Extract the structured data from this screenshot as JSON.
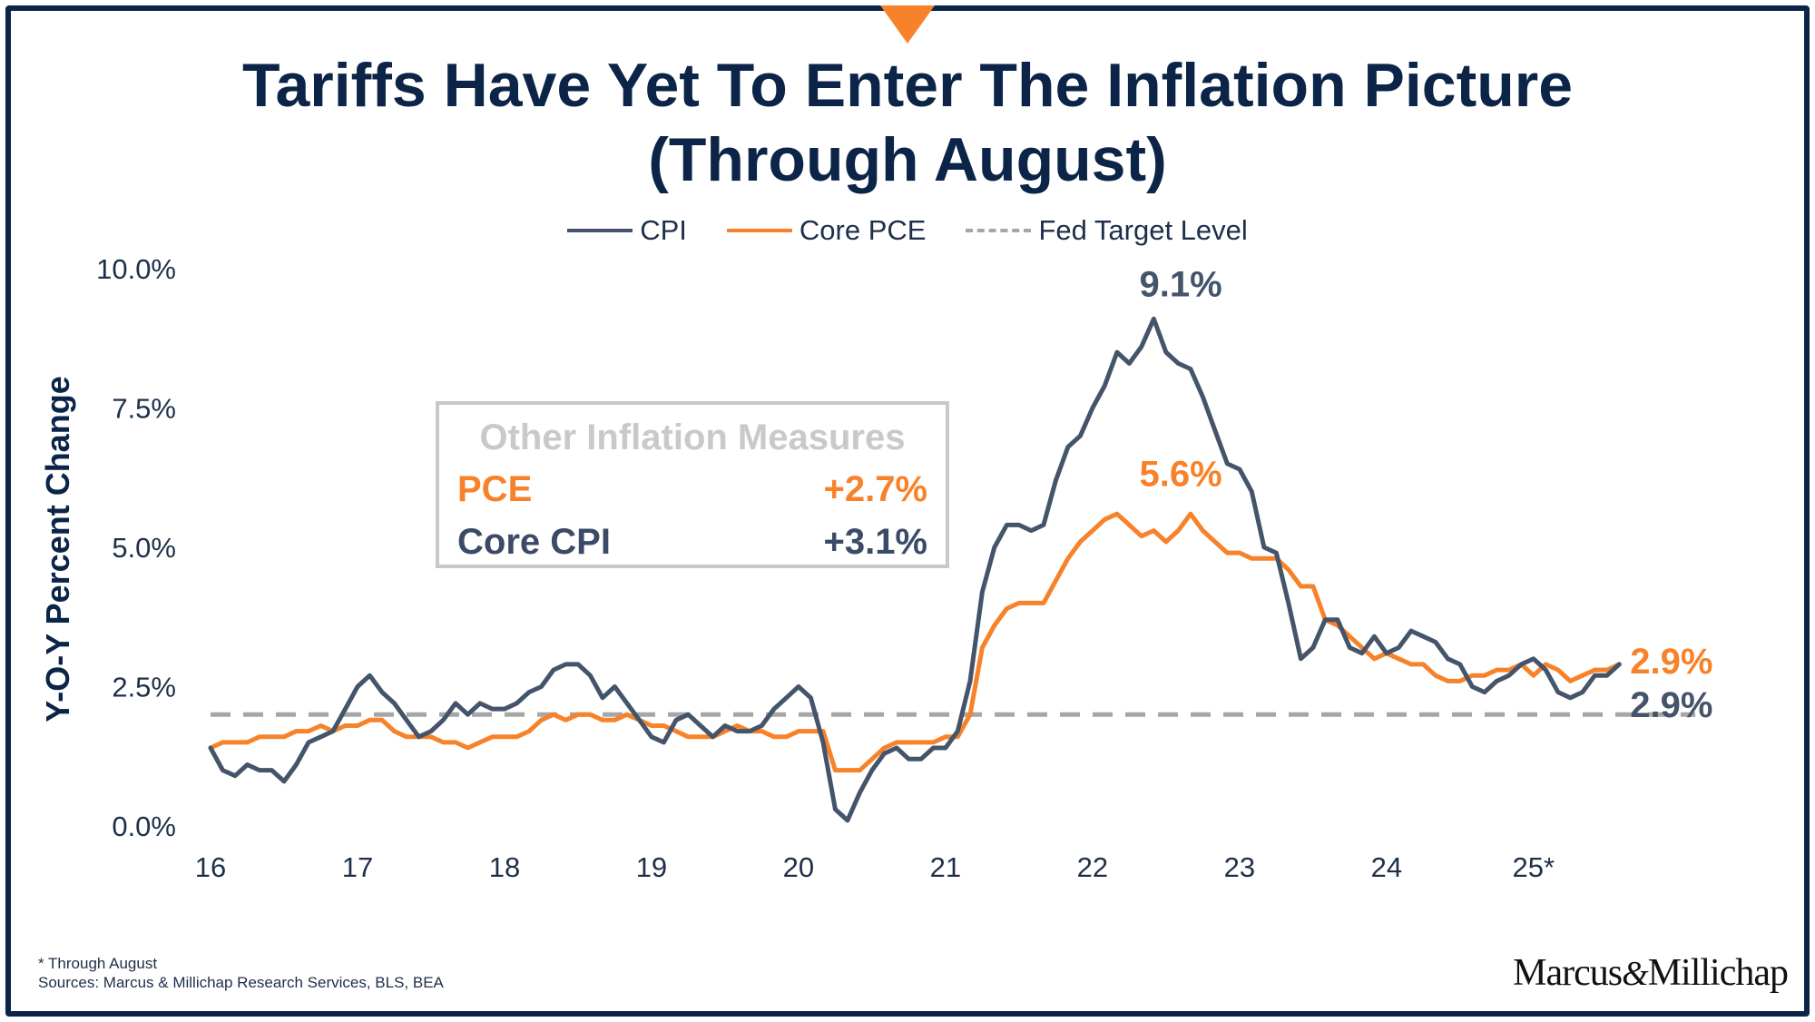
{
  "title_lines": [
    "Tariffs Have Yet To Enter The Inflation Picture",
    "(Through August)"
  ],
  "legend": [
    {
      "label": "CPI",
      "color": "#44546a",
      "style": "solid"
    },
    {
      "label": "Core PCE",
      "color": "#f7822a",
      "style": "solid"
    },
    {
      "label": "Fed Target Level",
      "color": "#a6a6a6",
      "style": "dashed"
    }
  ],
  "inset": {
    "title": "Other Inflation Measures",
    "rows": [
      {
        "label": "PCE",
        "value": "+2.7%",
        "color": "#f7822a"
      },
      {
        "label": "Core CPI",
        "value": "+3.1%",
        "color": "#3b4a66"
      }
    ]
  },
  "footnote": {
    "line1": "* Through August",
    "line2": "Sources: Marcus & Millichap Research Services, BLS, BEA"
  },
  "logo": {
    "left": "Marcus",
    "amp": "&",
    "right": "Millichap"
  },
  "chart_data": {
    "type": "line",
    "title": "Tariffs Have Yet To Enter The Inflation Picture (Through August)",
    "ylabel": "Y-O-Y Percent Change",
    "xlabel": "",
    "ylim": [
      0,
      10
    ],
    "xlim": [
      2016,
      2026.1
    ],
    "yticks": [
      0,
      2.5,
      5,
      7.5,
      10
    ],
    "ytick_labels": [
      "0.0%",
      "2.5%",
      "5.0%",
      "7.5%",
      "10.0%"
    ],
    "xticks": [
      2016,
      2017,
      2018,
      2019,
      2020,
      2021,
      2022,
      2023,
      2024,
      2025
    ],
    "xtick_labels": [
      "16",
      "17",
      "18",
      "19",
      "20",
      "21",
      "22",
      "23",
      "24",
      "25*"
    ],
    "grid": false,
    "legend_position": "top",
    "fed_target": 2.0,
    "series": [
      {
        "name": "CPI",
        "color": "#44546a",
        "points": [
          [
            2016.0,
            1.4
          ],
          [
            2016.083,
            1.0
          ],
          [
            2016.167,
            0.9
          ],
          [
            2016.25,
            1.1
          ],
          [
            2016.333,
            1.0
          ],
          [
            2016.417,
            1.0
          ],
          [
            2016.5,
            0.8
          ],
          [
            2016.583,
            1.1
          ],
          [
            2016.667,
            1.5
          ],
          [
            2016.75,
            1.6
          ],
          [
            2016.833,
            1.7
          ],
          [
            2016.917,
            2.1
          ],
          [
            2017.0,
            2.5
          ],
          [
            2017.083,
            2.7
          ],
          [
            2017.167,
            2.4
          ],
          [
            2017.25,
            2.2
          ],
          [
            2017.333,
            1.9
          ],
          [
            2017.417,
            1.6
          ],
          [
            2017.5,
            1.7
          ],
          [
            2017.583,
            1.9
          ],
          [
            2017.667,
            2.2
          ],
          [
            2017.75,
            2.0
          ],
          [
            2017.833,
            2.2
          ],
          [
            2017.917,
            2.1
          ],
          [
            2018.0,
            2.1
          ],
          [
            2018.083,
            2.2
          ],
          [
            2018.167,
            2.4
          ],
          [
            2018.25,
            2.5
          ],
          [
            2018.333,
            2.8
          ],
          [
            2018.417,
            2.9
          ],
          [
            2018.5,
            2.9
          ],
          [
            2018.583,
            2.7
          ],
          [
            2018.667,
            2.3
          ],
          [
            2018.75,
            2.5
          ],
          [
            2018.833,
            2.2
          ],
          [
            2018.917,
            1.9
          ],
          [
            2019.0,
            1.6
          ],
          [
            2019.083,
            1.5
          ],
          [
            2019.167,
            1.9
          ],
          [
            2019.25,
            2.0
          ],
          [
            2019.333,
            1.8
          ],
          [
            2019.417,
            1.6
          ],
          [
            2019.5,
            1.8
          ],
          [
            2019.583,
            1.7
          ],
          [
            2019.667,
            1.7
          ],
          [
            2019.75,
            1.8
          ],
          [
            2019.833,
            2.1
          ],
          [
            2019.917,
            2.3
          ],
          [
            2020.0,
            2.5
          ],
          [
            2020.083,
            2.3
          ],
          [
            2020.167,
            1.5
          ],
          [
            2020.25,
            0.3
          ],
          [
            2020.333,
            0.1
          ],
          [
            2020.417,
            0.6
          ],
          [
            2020.5,
            1.0
          ],
          [
            2020.583,
            1.3
          ],
          [
            2020.667,
            1.4
          ],
          [
            2020.75,
            1.2
          ],
          [
            2020.833,
            1.2
          ],
          [
            2020.917,
            1.4
          ],
          [
            2021.0,
            1.4
          ],
          [
            2021.083,
            1.7
          ],
          [
            2021.167,
            2.6
          ],
          [
            2021.25,
            4.2
          ],
          [
            2021.333,
            5.0
          ],
          [
            2021.417,
            5.4
          ],
          [
            2021.5,
            5.4
          ],
          [
            2021.583,
            5.3
          ],
          [
            2021.667,
            5.4
          ],
          [
            2021.75,
            6.2
          ],
          [
            2021.833,
            6.8
          ],
          [
            2021.917,
            7.0
          ],
          [
            2022.0,
            7.5
          ],
          [
            2022.083,
            7.9
          ],
          [
            2022.167,
            8.5
          ],
          [
            2022.25,
            8.3
          ],
          [
            2022.333,
            8.6
          ],
          [
            2022.417,
            9.1
          ],
          [
            2022.5,
            8.5
          ],
          [
            2022.583,
            8.3
          ],
          [
            2022.667,
            8.2
          ],
          [
            2022.75,
            7.7
          ],
          [
            2022.833,
            7.1
          ],
          [
            2022.917,
            6.5
          ],
          [
            2023.0,
            6.4
          ],
          [
            2023.083,
            6.0
          ],
          [
            2023.167,
            5.0
          ],
          [
            2023.25,
            4.9
          ],
          [
            2023.333,
            4.0
          ],
          [
            2023.417,
            3.0
          ],
          [
            2023.5,
            3.2
          ],
          [
            2023.583,
            3.7
          ],
          [
            2023.667,
            3.7
          ],
          [
            2023.75,
            3.2
          ],
          [
            2023.833,
            3.1
          ],
          [
            2023.917,
            3.4
          ],
          [
            2024.0,
            3.1
          ],
          [
            2024.083,
            3.2
          ],
          [
            2024.167,
            3.5
          ],
          [
            2024.25,
            3.4
          ],
          [
            2024.333,
            3.3
          ],
          [
            2024.417,
            3.0
          ],
          [
            2024.5,
            2.9
          ],
          [
            2024.583,
            2.5
          ],
          [
            2024.667,
            2.4
          ],
          [
            2024.75,
            2.6
          ],
          [
            2024.833,
            2.7
          ],
          [
            2024.917,
            2.9
          ],
          [
            2025.0,
            3.0
          ],
          [
            2025.083,
            2.8
          ],
          [
            2025.167,
            2.4
          ],
          [
            2025.25,
            2.3
          ],
          [
            2025.333,
            2.4
          ],
          [
            2025.417,
            2.7
          ],
          [
            2025.5,
            2.7
          ],
          [
            2025.583,
            2.9
          ]
        ],
        "end_label": "2.9%"
      },
      {
        "name": "Core PCE",
        "color": "#f7822a",
        "points": [
          [
            2016.0,
            1.4
          ],
          [
            2016.083,
            1.5
          ],
          [
            2016.167,
            1.5
          ],
          [
            2016.25,
            1.5
          ],
          [
            2016.333,
            1.6
          ],
          [
            2016.417,
            1.6
          ],
          [
            2016.5,
            1.6
          ],
          [
            2016.583,
            1.7
          ],
          [
            2016.667,
            1.7
          ],
          [
            2016.75,
            1.8
          ],
          [
            2016.833,
            1.7
          ],
          [
            2016.917,
            1.8
          ],
          [
            2017.0,
            1.8
          ],
          [
            2017.083,
            1.9
          ],
          [
            2017.167,
            1.9
          ],
          [
            2017.25,
            1.7
          ],
          [
            2017.333,
            1.6
          ],
          [
            2017.417,
            1.6
          ],
          [
            2017.5,
            1.6
          ],
          [
            2017.583,
            1.5
          ],
          [
            2017.667,
            1.5
          ],
          [
            2017.75,
            1.4
          ],
          [
            2017.833,
            1.5
          ],
          [
            2017.917,
            1.6
          ],
          [
            2018.0,
            1.6
          ],
          [
            2018.083,
            1.6
          ],
          [
            2018.167,
            1.7
          ],
          [
            2018.25,
            1.9
          ],
          [
            2018.333,
            2.0
          ],
          [
            2018.417,
            1.9
          ],
          [
            2018.5,
            2.0
          ],
          [
            2018.583,
            2.0
          ],
          [
            2018.667,
            1.9
          ],
          [
            2018.75,
            1.9
          ],
          [
            2018.833,
            2.0
          ],
          [
            2018.917,
            1.9
          ],
          [
            2019.0,
            1.8
          ],
          [
            2019.083,
            1.8
          ],
          [
            2019.167,
            1.7
          ],
          [
            2019.25,
            1.6
          ],
          [
            2019.333,
            1.6
          ],
          [
            2019.417,
            1.6
          ],
          [
            2019.5,
            1.7
          ],
          [
            2019.583,
            1.8
          ],
          [
            2019.667,
            1.7
          ],
          [
            2019.75,
            1.7
          ],
          [
            2019.833,
            1.6
          ],
          [
            2019.917,
            1.6
          ],
          [
            2020.0,
            1.7
          ],
          [
            2020.083,
            1.7
          ],
          [
            2020.167,
            1.7
          ],
          [
            2020.25,
            1.0
          ],
          [
            2020.333,
            1.0
          ],
          [
            2020.417,
            1.0
          ],
          [
            2020.5,
            1.2
          ],
          [
            2020.583,
            1.4
          ],
          [
            2020.667,
            1.5
          ],
          [
            2020.75,
            1.5
          ],
          [
            2020.833,
            1.5
          ],
          [
            2020.917,
            1.5
          ],
          [
            2021.0,
            1.6
          ],
          [
            2021.083,
            1.6
          ],
          [
            2021.167,
            2.0
          ],
          [
            2021.25,
            3.2
          ],
          [
            2021.333,
            3.6
          ],
          [
            2021.417,
            3.9
          ],
          [
            2021.5,
            4.0
          ],
          [
            2021.583,
            4.0
          ],
          [
            2021.667,
            4.0
          ],
          [
            2021.75,
            4.4
          ],
          [
            2021.833,
            4.8
          ],
          [
            2021.917,
            5.1
          ],
          [
            2022.0,
            5.3
          ],
          [
            2022.083,
            5.5
          ],
          [
            2022.167,
            5.6
          ],
          [
            2022.25,
            5.4
          ],
          [
            2022.333,
            5.2
          ],
          [
            2022.417,
            5.3
          ],
          [
            2022.5,
            5.1
          ],
          [
            2022.583,
            5.3
          ],
          [
            2022.667,
            5.6
          ],
          [
            2022.75,
            5.3
          ],
          [
            2022.833,
            5.1
          ],
          [
            2022.917,
            4.9
          ],
          [
            2023.0,
            4.9
          ],
          [
            2023.083,
            4.8
          ],
          [
            2023.167,
            4.8
          ],
          [
            2023.25,
            4.8
          ],
          [
            2023.333,
            4.6
          ],
          [
            2023.417,
            4.3
          ],
          [
            2023.5,
            4.3
          ],
          [
            2023.583,
            3.7
          ],
          [
            2023.667,
            3.6
          ],
          [
            2023.75,
            3.4
          ],
          [
            2023.833,
            3.2
          ],
          [
            2023.917,
            3.0
          ],
          [
            2024.0,
            3.1
          ],
          [
            2024.083,
            3.0
          ],
          [
            2024.167,
            2.9
          ],
          [
            2024.25,
            2.9
          ],
          [
            2024.333,
            2.7
          ],
          [
            2024.417,
            2.6
          ],
          [
            2024.5,
            2.6
          ],
          [
            2024.583,
            2.7
          ],
          [
            2024.667,
            2.7
          ],
          [
            2024.75,
            2.8
          ],
          [
            2024.833,
            2.8
          ],
          [
            2024.917,
            2.9
          ],
          [
            2025.0,
            2.7
          ],
          [
            2025.083,
            2.9
          ],
          [
            2025.167,
            2.8
          ],
          [
            2025.25,
            2.6
          ],
          [
            2025.333,
            2.7
          ],
          [
            2025.417,
            2.8
          ],
          [
            2025.5,
            2.8
          ],
          [
            2025.583,
            2.9
          ]
        ],
        "end_label": "2.9%"
      }
    ],
    "annotations": [
      {
        "text": "9.1%",
        "x": 2022.6,
        "y": 9.5,
        "color": "#44546a"
      },
      {
        "text": "5.6%",
        "x": 2022.6,
        "y": 6.1,
        "color": "#f7822a"
      }
    ]
  }
}
